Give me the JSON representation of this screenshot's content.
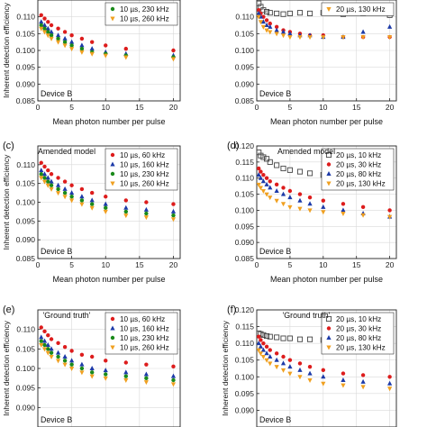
{
  "chart_data": [
    {
      "type": "scatter",
      "panel_label": "",
      "annotation": "",
      "device_label": "Device B",
      "xlabel": "Mean photon number per pulse",
      "ylabel": "Inherent detection efficiency",
      "xlim": [
        0,
        21
      ],
      "ylim": [
        0.085,
        0.115
      ],
      "xticks": [
        "0",
        "5",
        "10",
        "15",
        "20"
      ],
      "yticks": [
        "0.085",
        "0.090",
        "0.095",
        "0.100",
        "0.105",
        "0.110"
      ],
      "grid": true,
      "legend_position": "top-right",
      "series": [
        {
          "name": "",
          "color": "#dd1c1c",
          "marker": "circle",
          "x": [
            0.5,
            1,
            1.5,
            2,
            3,
            4,
            5,
            6.5,
            8,
            10,
            13,
            20
          ],
          "y": [
            0.1105,
            0.1095,
            0.1085,
            0.1075,
            0.1065,
            0.1055,
            0.1045,
            0.1035,
            0.1025,
            0.1015,
            0.1005,
            0.1
          ]
        },
        {
          "name": "",
          "color": "#1c3aa8",
          "marker": "triangle",
          "x": [
            0.5,
            1,
            1.5,
            2,
            3,
            4,
            5,
            6.5,
            8,
            10,
            13,
            20
          ],
          "y": [
            0.1085,
            0.1075,
            0.1065,
            0.1055,
            0.1045,
            0.1035,
            0.1025,
            0.1015,
            0.1005,
            0.0995,
            0.099,
            0.0985
          ]
        },
        {
          "name": "10 µs, 230 kHz",
          "color": "#1a8a1a",
          "marker": "circle",
          "x": [
            0.5,
            1,
            1.5,
            2,
            3,
            4,
            5,
            6.5,
            8,
            10,
            13,
            20
          ],
          "y": [
            0.1075,
            0.1065,
            0.1055,
            0.1045,
            0.1035,
            0.1025,
            0.1015,
            0.1005,
            0.0995,
            0.099,
            0.0985,
            0.098
          ]
        },
        {
          "name": "10 µs, 260 kHz",
          "color": "#f0a020",
          "marker": "triangle-down",
          "x": [
            0.5,
            1,
            1.5,
            2,
            3,
            4,
            5,
            6.5,
            8,
            10,
            13,
            20
          ],
          "y": [
            0.1065,
            0.1055,
            0.1045,
            0.1035,
            0.1025,
            0.1015,
            0.1005,
            0.0995,
            0.099,
            0.0985,
            0.098,
            0.0975
          ]
        }
      ]
    },
    {
      "type": "scatter",
      "panel_label": "",
      "annotation": "",
      "device_label": "Device B",
      "xlabel": "Mean photon number per pulse",
      "ylabel": "",
      "xlim": [
        0,
        21
      ],
      "ylim": [
        0.085,
        0.115
      ],
      "xticks": [
        "0",
        "5",
        "10",
        "15",
        "20"
      ],
      "yticks": [
        "0.085",
        "0.090",
        "0.095",
        "0.100",
        "0.105",
        "0.110"
      ],
      "grid": true,
      "legend_position": "top-right",
      "series": [
        {
          "name": "",
          "color": "#444444",
          "marker": "square",
          "x": [
            0.3,
            0.6,
            1,
            1.5,
            2,
            3,
            4,
            5,
            6.5,
            8,
            10,
            13,
            16,
            20
          ],
          "y": [
            0.114,
            0.113,
            0.112,
            0.1115,
            0.1112,
            0.111,
            0.1108,
            0.111,
            0.1112,
            0.111,
            0.1112,
            0.1108,
            0.111,
            0.1105
          ]
        },
        {
          "name": "",
          "color": "#dd1c1c",
          "marker": "circle",
          "x": [
            0.3,
            0.6,
            1,
            1.5,
            2,
            3,
            4,
            5,
            6.5,
            8,
            10,
            13,
            16,
            20
          ],
          "y": [
            0.112,
            0.111,
            0.11,
            0.109,
            0.108,
            0.107,
            0.106,
            0.1055,
            0.105,
            0.1045,
            0.1045,
            0.104,
            0.104,
            0.104
          ]
        },
        {
          "name": "",
          "color": "#1c3aa8",
          "marker": "triangle",
          "x": [
            0.3,
            0.6,
            1,
            1.5,
            2,
            3,
            4,
            5,
            6.5,
            8,
            10,
            13,
            16,
            20
          ],
          "y": [
            0.111,
            0.11,
            0.1085,
            0.1075,
            0.107,
            0.106,
            0.1055,
            0.105,
            0.1045,
            0.1045,
            0.104,
            0.104,
            0.1055,
            0.107
          ]
        },
        {
          "name": "20 µs, 130 kHz",
          "color": "#f0a020",
          "marker": "triangle-down",
          "x": [
            0.3,
            0.6,
            1,
            1.5,
            2,
            3,
            4,
            5,
            6.5,
            8,
            10,
            13,
            16,
            20
          ],
          "y": [
            0.11,
            0.1085,
            0.107,
            0.106,
            0.1055,
            0.105,
            0.1045,
            0.104,
            0.104,
            0.104,
            0.104,
            0.104,
            0.104,
            0.104
          ]
        }
      ]
    },
    {
      "type": "scatter",
      "panel_label": "(c)",
      "annotation": "Amended model",
      "device_label": "Device B",
      "xlabel": "Mean photon number per pulse",
      "ylabel": "Inherent detection efficiency",
      "xlim": [
        0,
        21
      ],
      "ylim": [
        0.085,
        0.115
      ],
      "xticks": [
        "0",
        "5",
        "10",
        "15",
        "20"
      ],
      "yticks": [
        "0.085",
        "0.090",
        "0.095",
        "0.100",
        "0.105",
        "0.110"
      ],
      "grid": true,
      "legend_position": "top-right",
      "series": [
        {
          "name": "10 µs, 60 kHz",
          "color": "#dd1c1c",
          "marker": "circle",
          "x": [
            0.5,
            1,
            1.5,
            2,
            3,
            4,
            5,
            6.5,
            8,
            10,
            13,
            16,
            20
          ],
          "y": [
            0.1105,
            0.1095,
            0.1085,
            0.1075,
            0.1065,
            0.1055,
            0.1045,
            0.1035,
            0.1025,
            0.1015,
            0.1005,
            0.1,
            0.0995
          ]
        },
        {
          "name": "10 µs, 160 kHz",
          "color": "#1c3aa8",
          "marker": "triangle",
          "x": [
            0.5,
            1,
            1.5,
            2,
            3,
            4,
            5,
            6.5,
            8,
            10,
            13,
            16,
            20
          ],
          "y": [
            0.1085,
            0.1075,
            0.1065,
            0.1055,
            0.1045,
            0.1035,
            0.1025,
            0.1015,
            0.1005,
            0.0995,
            0.0985,
            0.098,
            0.0975
          ]
        },
        {
          "name": "10 µs, 230 kHz",
          "color": "#1a8a1a",
          "marker": "circle",
          "x": [
            0.5,
            1,
            1.5,
            2,
            3,
            4,
            5,
            6.5,
            8,
            10,
            13,
            16,
            20
          ],
          "y": [
            0.1075,
            0.1065,
            0.1055,
            0.1045,
            0.1035,
            0.1025,
            0.1015,
            0.1005,
            0.0995,
            0.0985,
            0.0975,
            0.097,
            0.0965
          ]
        },
        {
          "name": "10 µs, 260 kHz",
          "color": "#f0a020",
          "marker": "triangle-down",
          "x": [
            0.5,
            1,
            1.5,
            2,
            3,
            4,
            5,
            6.5,
            8,
            10,
            13,
            16,
            20
          ],
          "y": [
            0.1065,
            0.1055,
            0.1045,
            0.1035,
            0.1025,
            0.1015,
            0.1005,
            0.0995,
            0.0985,
            0.0975,
            0.0965,
            0.096,
            0.0955
          ]
        }
      ]
    },
    {
      "type": "scatter",
      "panel_label": "(d)",
      "annotation": "Amended model",
      "device_label": "Device B",
      "xlabel": "Mean photon number per pulse",
      "ylabel": "",
      "xlim": [
        0,
        21
      ],
      "ylim": [
        0.085,
        0.12
      ],
      "xticks": [
        "0",
        "5",
        "10",
        "15",
        "20"
      ],
      "yticks": [
        "0.085",
        "0.090",
        "0.095",
        "0.100",
        "0.105",
        "0.110",
        "0.115",
        "0.120"
      ],
      "grid": true,
      "legend_position": "top-right",
      "series": [
        {
          "name": "20 µs, 10 kHz",
          "color": "#444444",
          "marker": "square",
          "x": [
            0.3,
            0.6,
            1,
            1.5,
            2,
            3,
            4,
            5,
            6.5,
            8,
            10,
            13,
            16,
            20
          ],
          "y": [
            0.118,
            0.117,
            0.1165,
            0.116,
            0.115,
            0.114,
            0.113,
            0.1125,
            0.112,
            0.1115,
            0.111,
            0.1105,
            0.1105,
            0.1105
          ]
        },
        {
          "name": "20 µs, 30 kHz",
          "color": "#dd1c1c",
          "marker": "circle",
          "x": [
            0.3,
            0.6,
            1,
            1.5,
            2,
            3,
            4,
            5,
            6.5,
            8,
            10,
            13,
            16,
            20
          ],
          "y": [
            0.113,
            0.112,
            0.111,
            0.11,
            0.109,
            0.108,
            0.107,
            0.106,
            0.105,
            0.104,
            0.103,
            0.102,
            0.101,
            0.1
          ]
        },
        {
          "name": "20 µs, 80 kHz",
          "color": "#1c3aa8",
          "marker": "triangle",
          "x": [
            0.3,
            0.6,
            1,
            1.5,
            2,
            3,
            4,
            5,
            6.5,
            8,
            10,
            13,
            16,
            20
          ],
          "y": [
            0.111,
            0.11,
            0.109,
            0.108,
            0.107,
            0.106,
            0.105,
            0.104,
            0.103,
            0.102,
            0.101,
            0.1,
            0.099,
            0.098
          ]
        },
        {
          "name": "20 µs, 130 kHz",
          "color": "#f0a020",
          "marker": "triangle-down",
          "x": [
            0.3,
            0.6,
            1,
            1.5,
            2,
            3,
            4,
            5,
            6.5,
            8,
            10,
            13,
            16,
            20
          ],
          "y": [
            0.108,
            0.107,
            0.106,
            0.105,
            0.104,
            0.103,
            0.102,
            0.101,
            0.1005,
            0.1,
            0.0995,
            0.099,
            0.0985,
            0.098
          ]
        }
      ]
    },
    {
      "type": "scatter",
      "panel_label": "(e)",
      "annotation": "'Ground truth'",
      "device_label": "Device B",
      "xlabel": "",
      "ylabel": "Inherent detection efficiency",
      "xlim": [
        0,
        21
      ],
      "ylim": [
        0.085,
        0.115
      ],
      "xticks": [],
      "yticks": [
        "0.090",
        "0.095",
        "0.100",
        "0.105",
        "0.110"
      ],
      "grid": true,
      "legend_position": "top-right",
      "series": [
        {
          "name": "10 µs, 60 kHz",
          "color": "#dd1c1c",
          "marker": "circle",
          "x": [
            0.5,
            1,
            1.5,
            2,
            3,
            4,
            5,
            6.5,
            8,
            10,
            13,
            16,
            20
          ],
          "y": [
            0.1105,
            0.1095,
            0.1085,
            0.1075,
            0.1065,
            0.1055,
            0.1045,
            0.1035,
            0.103,
            0.102,
            0.1015,
            0.101,
            0.1005
          ]
        },
        {
          "name": "10 µs, 160 kHz",
          "color": "#1c3aa8",
          "marker": "triangle",
          "x": [
            0.5,
            1,
            1.5,
            2,
            3,
            4,
            5,
            6.5,
            8,
            10,
            13,
            16,
            20
          ],
          "y": [
            0.108,
            0.107,
            0.106,
            0.105,
            0.104,
            0.103,
            0.102,
            0.101,
            0.1,
            0.0995,
            0.099,
            0.0985,
            0.098
          ]
        },
        {
          "name": "10 µs, 230 kHz",
          "color": "#1a8a1a",
          "marker": "circle",
          "x": [
            0.5,
            1,
            1.5,
            2,
            3,
            4,
            5,
            6.5,
            8,
            10,
            13,
            16,
            20
          ],
          "y": [
            0.107,
            0.106,
            0.105,
            0.104,
            0.103,
            0.102,
            0.101,
            0.1,
            0.099,
            0.0985,
            0.098,
            0.0975,
            0.097
          ]
        },
        {
          "name": "10 µs, 260 kHz",
          "color": "#f0a020",
          "marker": "triangle-down",
          "x": [
            0.5,
            1,
            1.5,
            2,
            3,
            4,
            5,
            6.5,
            8,
            10,
            13,
            16,
            20
          ],
          "y": [
            0.106,
            0.105,
            0.104,
            0.103,
            0.102,
            0.101,
            0.1,
            0.099,
            0.098,
            0.0975,
            0.097,
            0.0965,
            0.096
          ]
        }
      ]
    },
    {
      "type": "scatter",
      "panel_label": "(f)",
      "annotation": "'Ground truth'",
      "device_label": "Device B",
      "xlabel": "",
      "ylabel": "Inherent detection efficiency",
      "xlim": [
        0,
        21
      ],
      "ylim": [
        0.085,
        0.12
      ],
      "xticks": [],
      "yticks": [
        "0.090",
        "0.095",
        "0.100",
        "0.105",
        "0.110",
        "0.115",
        "0.120"
      ],
      "grid": true,
      "legend_position": "top-right",
      "series": [
        {
          "name": "20 µs, 10 kHz",
          "color": "#444444",
          "marker": "square",
          "x": [
            0.3,
            0.6,
            1,
            1.5,
            2,
            3,
            4,
            5,
            6.5,
            8,
            10,
            13,
            16,
            20
          ],
          "y": [
            0.113,
            0.1128,
            0.1125,
            0.1122,
            0.112,
            0.1118,
            0.1115,
            0.1115,
            0.1112,
            0.1112,
            0.111,
            0.111,
            0.111,
            0.111
          ]
        },
        {
          "name": "20 µs, 30 kHz",
          "color": "#dd1c1c",
          "marker": "circle",
          "x": [
            0.3,
            0.6,
            1,
            1.5,
            2,
            3,
            4,
            5,
            6.5,
            8,
            10,
            13,
            16,
            20
          ],
          "y": [
            0.112,
            0.111,
            0.11,
            0.109,
            0.108,
            0.107,
            0.106,
            0.105,
            0.104,
            0.103,
            0.102,
            0.101,
            0.1005,
            0.1
          ]
        },
        {
          "name": "20 µs, 80 kHz",
          "color": "#1c3aa8",
          "marker": "triangle",
          "x": [
            0.3,
            0.6,
            1,
            1.5,
            2,
            3,
            4,
            5,
            6.5,
            8,
            10,
            13,
            16,
            20
          ],
          "y": [
            0.11,
            0.109,
            0.108,
            0.107,
            0.106,
            0.105,
            0.104,
            0.103,
            0.102,
            0.101,
            0.1,
            0.099,
            0.0985,
            0.098
          ]
        },
        {
          "name": "20 µs, 130 kHz",
          "color": "#f0a020",
          "marker": "triangle-down",
          "x": [
            0.3,
            0.6,
            1,
            1.5,
            2,
            3,
            4,
            5,
            6.5,
            8,
            10,
            13,
            16,
            20
          ],
          "y": [
            0.108,
            0.107,
            0.106,
            0.105,
            0.104,
            0.103,
            0.102,
            0.101,
            0.1,
            0.099,
            0.098,
            0.0975,
            0.097,
            0.0965
          ]
        }
      ]
    }
  ]
}
